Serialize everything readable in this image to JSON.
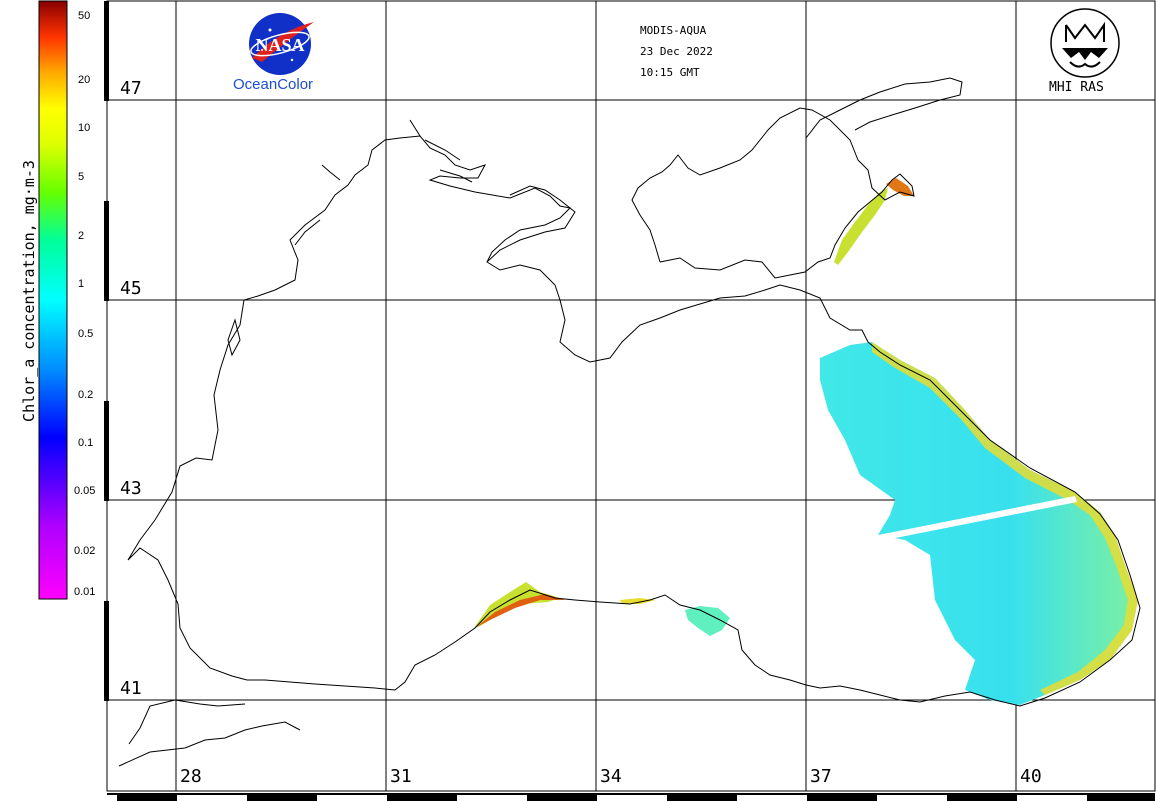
{
  "header": {
    "sensor": "MODIS-AQUA",
    "date": "23 Dec 2022",
    "time": "10:15 GMT"
  },
  "logos": {
    "nasa_text": "NASA",
    "oceancolor": "OceanColor",
    "mhi_text": "MHI RAS"
  },
  "colorbar": {
    "title": "Chlor_a concentration, mg·m-3",
    "ticks": [
      "50",
      "20",
      "10",
      "5",
      "2",
      "1",
      "0.5",
      "0.2",
      "0.1",
      "0.05",
      "0.02",
      "0.01"
    ],
    "scale": "log",
    "colors": [
      "#ff00ff",
      "#8a00ff",
      "#0000ff",
      "#00aaff",
      "#00ffff",
      "#00ff88",
      "#88ff00",
      "#ffff00",
      "#ffa500",
      "#ff4400",
      "#cc0000",
      "#800000"
    ]
  },
  "latitudes": [
    "47",
    "45",
    "43",
    "41"
  ],
  "longitudes": [
    "28",
    "31",
    "34",
    "37",
    "40"
  ],
  "colors": {
    "coastline": "#000000",
    "chlorophyll_main": "#33e6e6",
    "chlorophyll_high": "#f0dc28"
  }
}
